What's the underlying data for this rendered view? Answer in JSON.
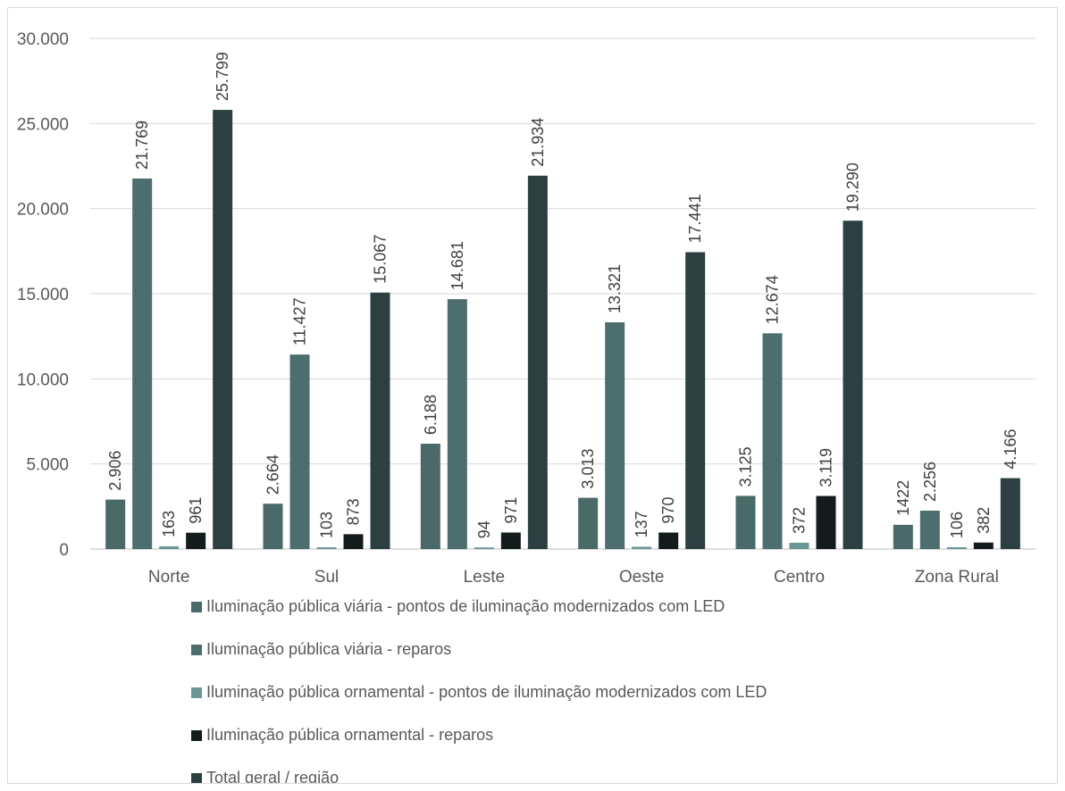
{
  "chart_data": {
    "type": "bar",
    "title": "",
    "xlabel": "",
    "ylabel": "",
    "ylim": [
      0,
      30000
    ],
    "yticks": [
      0,
      5000,
      10000,
      15000,
      20000,
      25000,
      30000
    ],
    "ytick_labels": [
      "0",
      "5.000",
      "10.000",
      "15.000",
      "20.000",
      "25.000",
      "30.000"
    ],
    "grid": true,
    "legend_position": "bottom",
    "categories": [
      "Norte",
      "Sul",
      "Leste",
      "Oeste",
      "Centro",
      "Zona Rural"
    ],
    "series": [
      {
        "name": "Iluminação pública viária - pontos de iluminação modernizados com LED",
        "color": "#4a6a6a",
        "values": [
          2906,
          2664,
          6188,
          3013,
          3125,
          1422
        ],
        "labels": [
          "2.906",
          "2.664",
          "6.188",
          "3.013",
          "3.125",
          "1422"
        ]
      },
      {
        "name": "Iluminação pública viária - reparos",
        "color": "#4d6e6e",
        "values": [
          21769,
          11427,
          14681,
          13321,
          12674,
          2256
        ],
        "labels": [
          "21.769",
          "11.427",
          "14.681",
          "13.321",
          "12.674",
          "2.256"
        ]
      },
      {
        "name": "Iluminação pública ornamental - pontos de iluminação modernizados com LED",
        "color": "#6b9696",
        "values": [
          163,
          103,
          94,
          137,
          372,
          106
        ],
        "labels": [
          "163",
          "103",
          "94",
          "137",
          "372",
          "106"
        ]
      },
      {
        "name": " Iluminação pública ornamental - reparos",
        "color": "#141b1c",
        "values": [
          961,
          873,
          971,
          970,
          3119,
          382
        ],
        "labels": [
          "961",
          "873",
          "971",
          "970",
          "3.119",
          "382"
        ]
      },
      {
        "name": "Total geral / região",
        "color": "#2c3f41",
        "values": [
          25799,
          15067,
          21934,
          17441,
          19290,
          4166
        ],
        "labels": [
          "25.799",
          "15.067",
          "21.934",
          "17.441",
          "19.290",
          "4.166"
        ]
      }
    ]
  }
}
